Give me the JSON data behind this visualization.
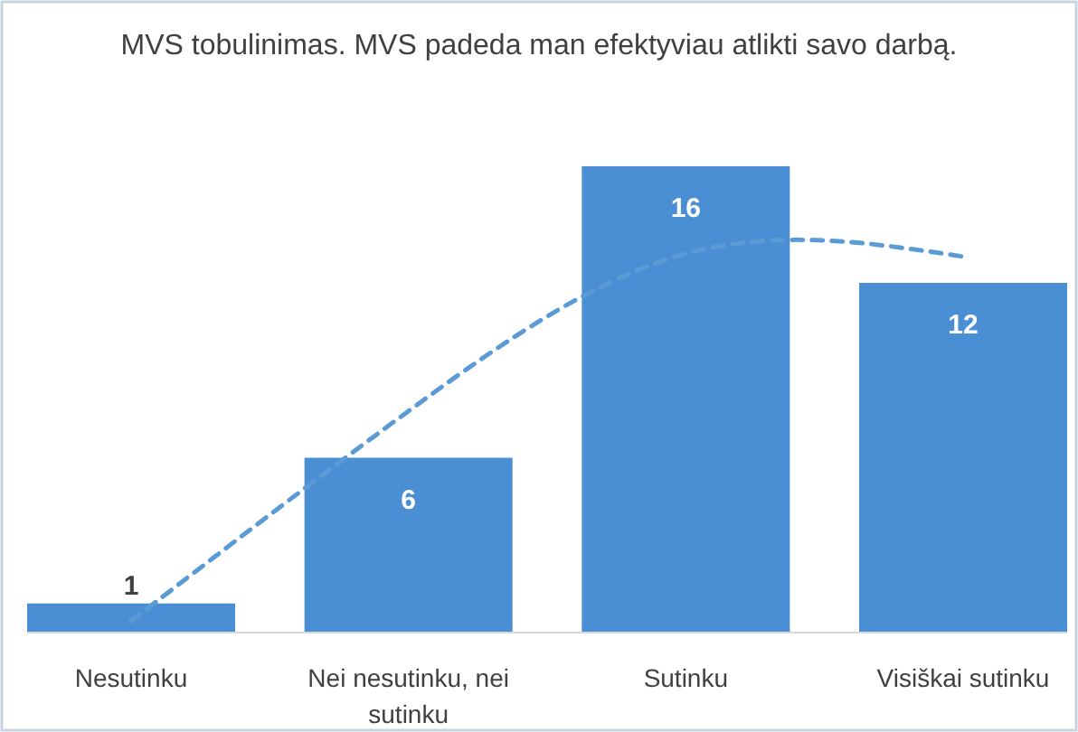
{
  "chart_data": {
    "type": "bar",
    "title": "MVS tobulinimas. MVS padeda man efektyviau atlikti savo darbą.",
    "categories": [
      "Nesutinku",
      "Nei nesutinku, nei sutinku",
      "Sutinku",
      "Visiškai sutinku"
    ],
    "series": [
      {
        "color": "#4a8fd4",
        "values": [
          1,
          6,
          16,
          12
        ],
        "value_labels": [
          "1",
          "6",
          "16",
          "12"
        ]
      },
      {
        "type": "line",
        "color": "#5b9bd5",
        "line_style": "dashed",
        "values": [
          0.4,
          7.6,
          13,
          12.9
        ]
      }
    ],
    "grid": false
  }
}
